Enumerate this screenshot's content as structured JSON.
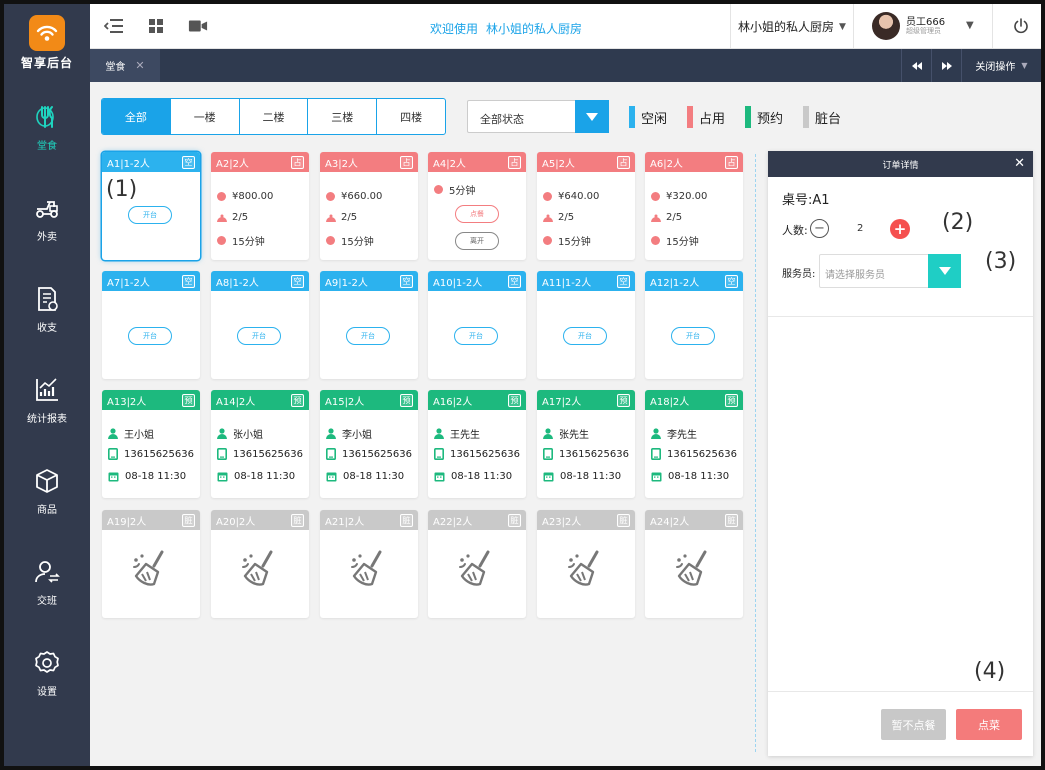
{
  "brand": {
    "name": "智享后台",
    "accent": "#f28a17"
  },
  "sidebar": {
    "items": [
      {
        "label": "堂食",
        "icon": "dining-icon",
        "active": true
      },
      {
        "label": "外卖",
        "icon": "delivery-scooter-icon",
        "active": false
      },
      {
        "label": "收支",
        "icon": "finance-doc-icon",
        "active": false
      },
      {
        "label": "统计报表",
        "icon": "chart-report-icon",
        "active": false
      },
      {
        "label": "商品",
        "icon": "product-box-icon",
        "active": false
      },
      {
        "label": "交班",
        "icon": "shift-user-icon",
        "active": false
      },
      {
        "label": "设置",
        "icon": "settings-gear-icon",
        "active": false
      }
    ]
  },
  "topbar": {
    "welcome": "欢迎使用",
    "shop_link": "林小姐的私人厨房",
    "shop_select": "林小姐的私人厨房",
    "user_name": "员工666",
    "user_role": "超级管理员"
  },
  "tabbar": {
    "tab": "堂食",
    "close_ops": "关闭操作"
  },
  "filters": {
    "floors": [
      "全部",
      "一楼",
      "二楼",
      "三楼",
      "四楼"
    ],
    "status": "全部状态",
    "legend": [
      {
        "label": "空闲",
        "color": "#2cb2ee"
      },
      {
        "label": "占用",
        "color": "#f37d80"
      },
      {
        "label": "预约",
        "color": "#1db97e"
      },
      {
        "label": "脏台",
        "color": "#c9c9c9"
      }
    ]
  },
  "tables": {
    "row1": [
      {
        "title": "A1|1-2人",
        "tag": "空",
        "open": "开台"
      },
      {
        "title": "A2|2人",
        "tag": "占",
        "amount": "¥800.00",
        "guests": "2/5",
        "time": "15分钟"
      },
      {
        "title": "A3|2人",
        "tag": "占",
        "amount": "¥660.00",
        "guests": "2/5",
        "time": "15分钟"
      },
      {
        "title": "A4|2人",
        "tag": "占",
        "time": "5分钟",
        "order_btn": "点餐",
        "leave_btn": "离开"
      },
      {
        "title": "A5|2人",
        "tag": "占",
        "amount": "¥640.00",
        "guests": "2/5",
        "time": "15分钟"
      },
      {
        "title": "A6|2人",
        "tag": "占",
        "amount": "¥320.00",
        "guests": "2/5",
        "time": "15分钟"
      }
    ],
    "row2": [
      {
        "title": "A7|1-2人",
        "tag": "空",
        "open": "开台"
      },
      {
        "title": "A8|1-2人",
        "tag": "空",
        "open": "开台"
      },
      {
        "title": "A9|1-2人",
        "tag": "空",
        "open": "开台"
      },
      {
        "title": "A10|1-2人",
        "tag": "空",
        "open": "开台"
      },
      {
        "title": "A11|1-2人",
        "tag": "空",
        "open": "开台"
      },
      {
        "title": "A12|1-2人",
        "tag": "空",
        "open": "开台"
      }
    ],
    "row3": [
      {
        "title": "A13|2人",
        "tag": "预",
        "name": "王小姐",
        "phone": "13615625636",
        "date": "08-18 11:30"
      },
      {
        "title": "A14|2人",
        "tag": "预",
        "name": "张小姐",
        "phone": "13615625636",
        "date": "08-18 11:30"
      },
      {
        "title": "A15|2人",
        "tag": "预",
        "name": "李小姐",
        "phone": "13615625636",
        "date": "08-18 11:30"
      },
      {
        "title": "A16|2人",
        "tag": "预",
        "name": "王先生",
        "phone": "13615625636",
        "date": "08-18 11:30"
      },
      {
        "title": "A17|2人",
        "tag": "预",
        "name": "张先生",
        "phone": "13615625636",
        "date": "08-18 11:30"
      },
      {
        "title": "A18|2人",
        "tag": "预",
        "name": "李先生",
        "phone": "13615625636",
        "date": "08-18 11:30"
      }
    ],
    "row4": [
      {
        "title": "A19|2人",
        "tag": "脏"
      },
      {
        "title": "A20|2人",
        "tag": "脏"
      },
      {
        "title": "A21|2人",
        "tag": "脏"
      },
      {
        "title": "A22|2人",
        "tag": "脏"
      },
      {
        "title": "A23|2人",
        "tag": "脏"
      },
      {
        "title": "A24|2人",
        "tag": "脏"
      }
    ]
  },
  "order_panel": {
    "title": "订单详情",
    "table_no": "桌号:A1",
    "people_label": "人数:",
    "people_count": "2",
    "waiter_label": "服务员:",
    "waiter_placeholder": "请选择服务员",
    "skip_btn": "暂不点餐",
    "order_btn": "点菜"
  },
  "annotations": {
    "a1": "(1)",
    "a2": "(2)",
    "a3": "(3)",
    "a4": "(4)"
  }
}
